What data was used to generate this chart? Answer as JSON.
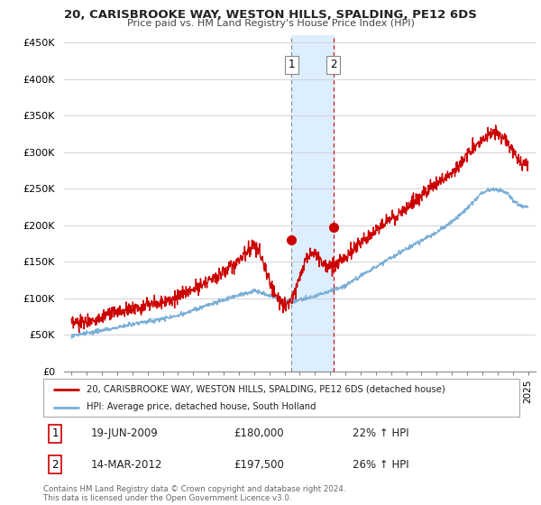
{
  "title": "20, CARISBROOKE WAY, WESTON HILLS, SPALDING, PE12 6DS",
  "subtitle": "Price paid vs. HM Land Registry's House Price Index (HPI)",
  "legend_label_red": "20, CARISBROOKE WAY, WESTON HILLS, SPALDING, PE12 6DS (detached house)",
  "legend_label_blue": "HPI: Average price, detached house, South Holland",
  "transaction1_date": "19-JUN-2009",
  "transaction1_price": "£180,000",
  "transaction1_hpi": "22% ↑ HPI",
  "transaction2_date": "14-MAR-2012",
  "transaction2_price": "£197,500",
  "transaction2_hpi": "26% ↑ HPI",
  "footer": "Contains HM Land Registry data © Crown copyright and database right 2024.\nThis data is licensed under the Open Government Licence v3.0.",
  "red_color": "#cc0000",
  "blue_color": "#7aaed6",
  "shade_color": "#ddeeff",
  "ylim": [
    0,
    460000
  ],
  "yticks": [
    0,
    50000,
    100000,
    150000,
    200000,
    250000,
    300000,
    350000,
    400000,
    450000
  ],
  "ytick_labels": [
    "£0",
    "£50K",
    "£100K",
    "£150K",
    "£200K",
    "£250K",
    "£300K",
    "£350K",
    "£400K",
    "£450K"
  ],
  "marker1_x": 2009.46,
  "marker1_y": 180000,
  "marker2_x": 2012.2,
  "marker2_y": 197500,
  "shade_x1": 2009.46,
  "shade_x2": 2012.2,
  "xmin": 1995,
  "xmax": 2025
}
